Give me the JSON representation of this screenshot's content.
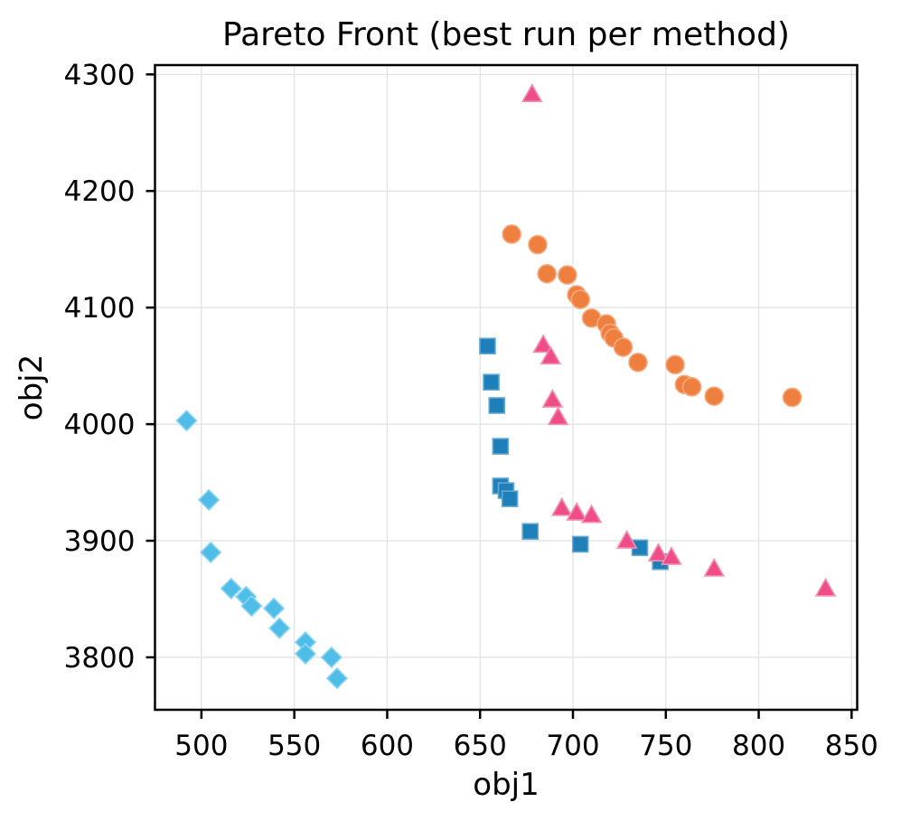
{
  "chart_data": {
    "type": "scatter",
    "title": "Pareto Front (best run per method)",
    "xlabel": "obj1",
    "ylabel": "obj2",
    "xlim": [
      475,
      853
    ],
    "ylim": [
      3755,
      4308
    ],
    "xticks": [
      500,
      550,
      600,
      650,
      700,
      750,
      800,
      850
    ],
    "yticks": [
      3800,
      3900,
      4000,
      4100,
      4200,
      4300
    ],
    "grid": true,
    "legend": "none",
    "series": [
      {
        "name": "cyan-diamonds",
        "marker": "diamond",
        "color": "#50bde9",
        "edge_color": "#8ad4f2",
        "points": [
          [
            492,
            4003
          ],
          [
            504,
            3935
          ],
          [
            505,
            3890
          ],
          [
            516,
            3859
          ],
          [
            524,
            3852
          ],
          [
            527,
            3844
          ],
          [
            539,
            3842
          ],
          [
            542,
            3825
          ],
          [
            556,
            3813
          ],
          [
            556,
            3803
          ],
          [
            570,
            3800
          ],
          [
            573,
            3782
          ]
        ]
      },
      {
        "name": "blue-squares",
        "marker": "square",
        "color": "#1f7fb8",
        "edge_color": "#65a8d0",
        "points": [
          [
            654,
            4067
          ],
          [
            656,
            4036
          ],
          [
            659,
            4016
          ],
          [
            661,
            3981
          ],
          [
            661,
            3947
          ],
          [
            664,
            3943
          ],
          [
            666,
            3936
          ],
          [
            677,
            3908
          ],
          [
            704,
            3897
          ],
          [
            736,
            3894
          ],
          [
            747,
            3882
          ]
        ]
      },
      {
        "name": "orange-circles",
        "marker": "circle",
        "color": "#ee7f3f",
        "edge_color": "#f5aa7e",
        "points": [
          [
            667,
            4163
          ],
          [
            681,
            4154
          ],
          [
            686,
            4129
          ],
          [
            697,
            4128
          ],
          [
            702,
            4111
          ],
          [
            704,
            4107
          ],
          [
            710,
            4091
          ],
          [
            718,
            4086
          ],
          [
            720,
            4078
          ],
          [
            722,
            4074
          ],
          [
            727,
            4066
          ],
          [
            735,
            4053
          ],
          [
            755,
            4051
          ],
          [
            760,
            4034
          ],
          [
            764,
            4032
          ],
          [
            776,
            4024
          ],
          [
            818,
            4023
          ]
        ]
      },
      {
        "name": "pink-triangles",
        "marker": "triangle",
        "color": "#ee4d87",
        "edge_color": "#f590b4",
        "points": [
          [
            678,
            4283
          ],
          [
            684,
            4068
          ],
          [
            688,
            4058
          ],
          [
            689,
            4021
          ],
          [
            692,
            4006
          ],
          [
            694,
            3928
          ],
          [
            702,
            3924
          ],
          [
            710,
            3922
          ],
          [
            729,
            3900
          ],
          [
            746,
            3889
          ],
          [
            753,
            3886
          ],
          [
            776,
            3876
          ],
          [
            836,
            3859
          ]
        ]
      }
    ]
  }
}
